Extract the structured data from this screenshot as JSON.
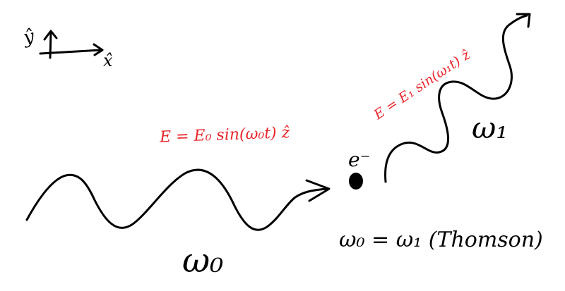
{
  "colors": {
    "ink": "#000000",
    "field_equation": "#e8252b",
    "background": "#ffffff"
  },
  "axes": {
    "y_label": "ŷ",
    "x_label": "x̂"
  },
  "incident_wave": {
    "field_equation": "E = E₀ sin(ω₀t) ẑ",
    "frequency_label": "ω₀"
  },
  "electron": {
    "label": "e⁻"
  },
  "scattered_wave": {
    "field_equation": "E = E₁ sin(ω₁t) ẑ",
    "frequency_label": "ω₁"
  },
  "relation": {
    "text": "ω₀ = ω₁ (Thomson)"
  }
}
